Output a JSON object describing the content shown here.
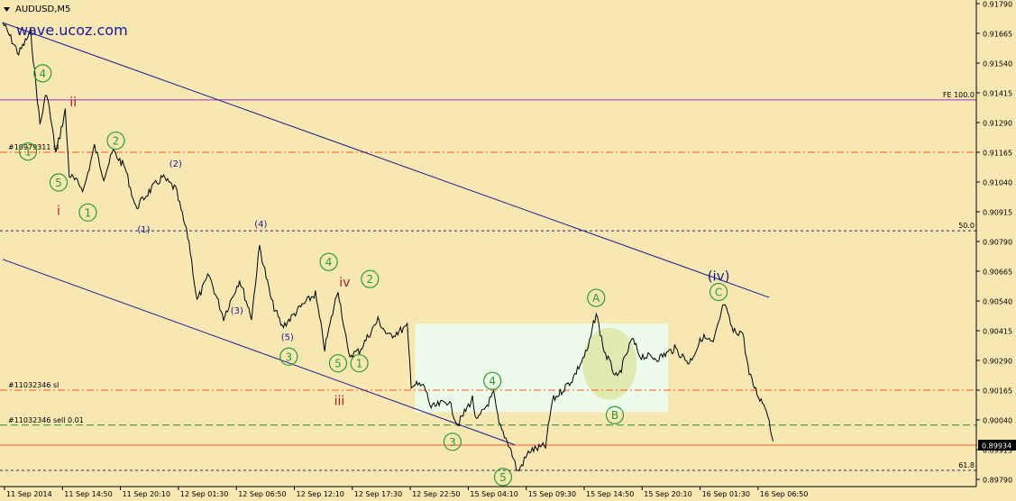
{
  "symbol_label": "AUDUSD,M5",
  "watermark": "wave.ucoz.com",
  "colors": {
    "background": "#f7e7b3",
    "candles": "#000000",
    "channel": "#1a1a8c",
    "fe_line": "#9933cc",
    "sl_line": "#ff5a1e",
    "sell_line": "#2a8a2a",
    "fib_line": "#2a2a6a",
    "circle_green": "#2f9a2f",
    "roman_red": "#b32222",
    "wave_blue": "#1a1a8c",
    "highlight_box": "#ecfbea",
    "price_box": "#000000"
  },
  "chart_data": {
    "type": "line",
    "symbol": "AUDUSD",
    "timeframe": "M5",
    "ylim": [
      0.8979,
      0.9179
    ],
    "y_ticks": [
      "0.91790",
      "0.91665",
      "0.91540",
      "0.91415",
      "0.91290",
      "0.91165",
      "0.91040",
      "0.90915",
      "0.90790",
      "0.90665",
      "0.90540",
      "0.90415",
      "0.90290",
      "0.90165",
      "0.90040",
      "0.89915",
      "0.89790"
    ],
    "x_ticks": [
      "11 Sep 2014",
      "11 Sep 14:50",
      "11 Sep 20:10",
      "12 Sep 01:30",
      "12 Sep 06:50",
      "12 Sep 12:10",
      "12 Sep 17:30",
      "12 Sep 22:50",
      "15 Sep 04:10",
      "15 Sep 09:30",
      "15 Sep 14:50",
      "15 Sep 20:10",
      "16 Sep 01:30",
      "16 Sep 06:50"
    ],
    "current_price": "0.89934",
    "price_series": [
      [
        0,
        0.9171
      ],
      [
        1.2,
        0.9158
      ],
      [
        2.1,
        0.9167
      ],
      [
        2.8,
        0.9128
      ],
      [
        3.3,
        0.9142
      ],
      [
        4.0,
        0.9116
      ],
      [
        4.7,
        0.9134
      ],
      [
        5.0,
        0.9107
      ],
      [
        6.1,
        0.9101
      ],
      [
        6.9,
        0.9119
      ],
      [
        7.6,
        0.9106
      ],
      [
        8.3,
        0.9117
      ],
      [
        9.2,
        0.911
      ],
      [
        10.0,
        0.9093
      ],
      [
        11.0,
        0.91
      ],
      [
        12.0,
        0.9106
      ],
      [
        13.0,
        0.9101
      ],
      [
        14.0,
        0.9079
      ],
      [
        14.6,
        0.9054
      ],
      [
        15.5,
        0.9065
      ],
      [
        16.6,
        0.9047
      ],
      [
        17.8,
        0.9063
      ],
      [
        18.7,
        0.9047
      ],
      [
        19.3,
        0.9077
      ],
      [
        20.2,
        0.9054
      ],
      [
        21.0,
        0.9043
      ],
      [
        22.5,
        0.9052
      ],
      [
        23.5,
        0.9057
      ],
      [
        24.2,
        0.9034
      ],
      [
        25.2,
        0.9059
      ],
      [
        26.0,
        0.9031
      ],
      [
        26.8,
        0.9033
      ],
      [
        28.2,
        0.9046
      ],
      [
        29.0,
        0.9039
      ],
      [
        30.4,
        0.9043
      ],
      [
        30.7,
        0.9019
      ],
      [
        31.7,
        0.9018
      ],
      [
        32.2,
        0.9009
      ],
      [
        33.5,
        0.9012
      ],
      [
        34.2,
        0.9002
      ],
      [
        35.3,
        0.9013
      ],
      [
        35.6,
        0.9003
      ],
      [
        36.9,
        0.9015
      ],
      [
        37.3,
        0.9002
      ],
      [
        38.1,
        0.8993
      ],
      [
        38.7,
        0.8982
      ],
      [
        39.6,
        0.8991
      ],
      [
        40.8,
        0.8993
      ],
      [
        41.3,
        0.9012
      ],
      [
        42.8,
        0.9021
      ],
      [
        44.0,
        0.9034
      ],
      [
        44.6,
        0.9049
      ],
      [
        45.2,
        0.9033
      ],
      [
        46.2,
        0.9021
      ],
      [
        47.3,
        0.9038
      ],
      [
        47.9,
        0.9031
      ],
      [
        49.3,
        0.903
      ],
      [
        50.5,
        0.9034
      ],
      [
        51.6,
        0.9028
      ],
      [
        52.6,
        0.9039
      ],
      [
        53.4,
        0.9036
      ],
      [
        54.2,
        0.9053
      ],
      [
        54.9,
        0.9041
      ],
      [
        55.6,
        0.9041
      ],
      [
        56.1,
        0.9023
      ],
      [
        56.8,
        0.9014
      ],
      [
        57.4,
        0.9009
      ],
      [
        57.9,
        0.8995
      ]
    ],
    "lines": [
      {
        "name": "FE 100.0",
        "value": 0.91385
      },
      {
        "name": "#10979311 sl",
        "value": 0.91165
      },
      {
        "name": "50.0",
        "value": 0.90835
      },
      {
        "name": "#11032346 sl",
        "value": 0.90165
      },
      {
        "name": "#11032346 sell 0.01",
        "value": 0.90018
      },
      {
        "name": "61.8",
        "value": 0.89828
      }
    ],
    "channel": [
      {
        "x0": 0,
        "y0": 0.9171,
        "x1": 57.6,
        "y1": 0.90555
      },
      {
        "x0": 0,
        "y0": 0.90715,
        "x1": 38.5,
        "y1": 0.89935
      }
    ],
    "labels": [
      {
        "text": "4",
        "style": "circle",
        "x": 3.0,
        "y": 0.91497
      },
      {
        "text": "ii",
        "style": "roman",
        "x": 5.3,
        "y": 0.91377
      },
      {
        "text": "2",
        "style": "circle",
        "x": 8.5,
        "y": 0.91214
      },
      {
        "text": "(2)",
        "style": "paren",
        "x": 13.0,
        "y": 0.9112
      },
      {
        "text": "1",
        "style": "circle",
        "x": 1.9,
        "y": 0.91168
      },
      {
        "text": "5",
        "style": "circle",
        "x": 4.2,
        "y": 0.91038
      },
      {
        "text": "i",
        "style": "roman",
        "x": 4.2,
        "y": 0.9092
      },
      {
        "text": "1",
        "style": "circle",
        "x": 6.4,
        "y": 0.90912
      },
      {
        "text": "(1)",
        "style": "paren",
        "x": 10.6,
        "y": 0.90843
      },
      {
        "text": "(4)",
        "style": "paren",
        "x": 19.4,
        "y": 0.90865
      },
      {
        "text": "4",
        "style": "circle",
        "x": 24.5,
        "y": 0.90704
      },
      {
        "text": "iv",
        "style": "roman",
        "x": 25.7,
        "y": 0.9062
      },
      {
        "text": "2",
        "style": "circle",
        "x": 27.6,
        "y": 0.90632
      },
      {
        "text": "(3)",
        "style": "paren",
        "x": 17.6,
        "y": 0.90502
      },
      {
        "text": "(5)",
        "style": "paren",
        "x": 21.4,
        "y": 0.90391
      },
      {
        "text": "3",
        "style": "circle",
        "x": 21.5,
        "y": 0.90306
      },
      {
        "text": "5",
        "style": "circle",
        "x": 25.2,
        "y": 0.90278
      },
      {
        "text": "1",
        "style": "circle",
        "x": 26.8,
        "y": 0.90278
      },
      {
        "text": "iii",
        "style": "roman",
        "x": 25.3,
        "y": 0.90122
      },
      {
        "text": "4",
        "style": "circle",
        "x": 36.8,
        "y": 0.90204
      },
      {
        "text": "3",
        "style": "circle",
        "x": 33.8,
        "y": 0.89948
      },
      {
        "text": "5",
        "style": "circle",
        "x": 37.6,
        "y": 0.898
      },
      {
        "text": "A",
        "style": "circle",
        "x": 44.6,
        "y": 0.90553
      },
      {
        "text": "B",
        "style": "circle",
        "x": 46.0,
        "y": 0.9006
      },
      {
        "text": "(iv)",
        "style": "wave",
        "x": 53.8,
        "y": 0.90645
      },
      {
        "text": "C",
        "style": "circle",
        "x": 53.8,
        "y": 0.90578
      }
    ],
    "highlight": {
      "x0": 31.0,
      "x1": 50.0,
      "y0": 0.90445,
      "y1": 0.90073
    },
    "grid": false
  }
}
